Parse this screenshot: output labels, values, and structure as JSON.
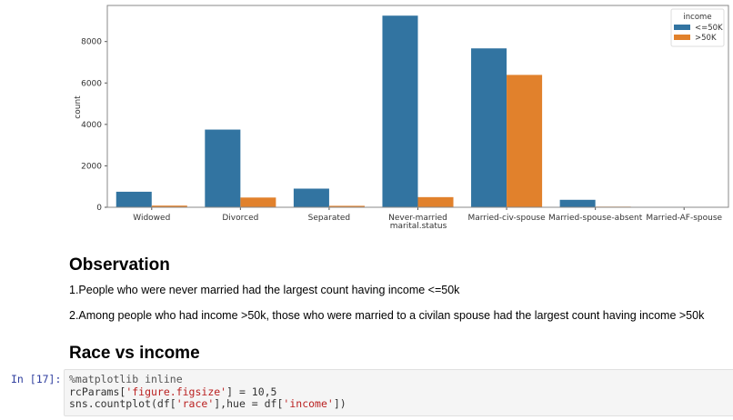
{
  "chart_data": {
    "type": "bar",
    "title": "",
    "xlabel": "marital.status",
    "ylabel": "count",
    "ylim": [
      0,
      9700
    ],
    "yticks": [
      0,
      2000,
      4000,
      6000,
      8000
    ],
    "grid": false,
    "legend": {
      "title": "income",
      "position": "upper right",
      "entries": [
        "<=50K",
        ">50K"
      ]
    },
    "categories": [
      "Widowed",
      "Divorced",
      "Separated",
      "Never-married",
      "Married-civ-spouse",
      "Married-spouse-absent",
      "Married-AF-spouse"
    ],
    "series": [
      {
        "name": "<=50K",
        "color": "#3274a1",
        "values": [
          750,
          3750,
          900,
          9250,
          7670,
          360,
          20
        ]
      },
      {
        "name": ">50K",
        "color": "#e1812c",
        "values": [
          80,
          470,
          70,
          490,
          6390,
          30,
          10
        ]
      }
    ]
  },
  "observation": {
    "heading": "Observation",
    "point1": "1.People who were never married had the largest count having income <=50k",
    "point2": "2.Among people who had income >50k, those who were married to a civilan spouse had the largest count having income >50k"
  },
  "section2": {
    "heading": "Race vs income"
  },
  "cell": {
    "prompt": "In [17]:",
    "line1": "%matplotlib inline",
    "line2_a": "rcParams[",
    "line2_str": "'figure.figsize'",
    "line2_b": "] = 10,5",
    "line3_a": "sns.countplot(df[",
    "line3_str1": "'race'",
    "line3_b": "],hue = df[",
    "line3_str2": "'income'",
    "line3_c": "])"
  }
}
